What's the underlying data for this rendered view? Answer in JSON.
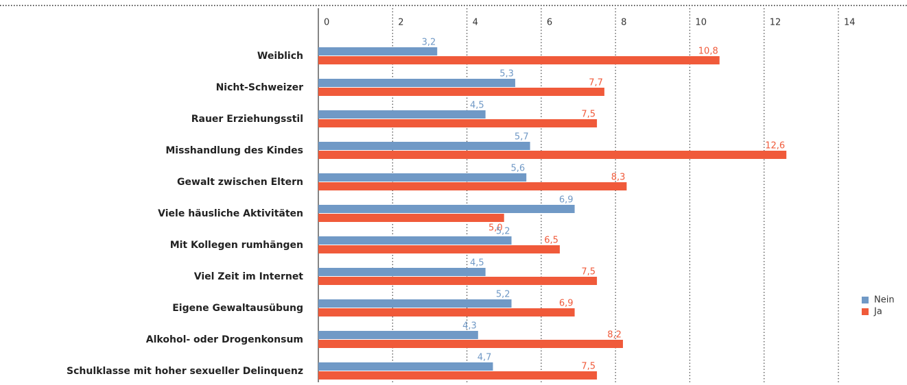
{
  "chart_data": {
    "type": "bar",
    "orientation": "horizontal",
    "categories": [
      "Weiblich",
      "Nicht-Schweizer",
      "Rauer Erziehungsstil",
      "Misshandlung des Kindes",
      "Gewalt zwischen Eltern",
      "Viele häusliche Aktivitäten",
      "Mit Kollegen rumhängen",
      "Viel Zeit im Internet",
      "Eigene Gewaltausübung",
      "Alkohol- oder Drogenkonsum",
      "Schulklasse mit hoher sexueller Delinquenz"
    ],
    "series": [
      {
        "name": "Nein",
        "color": "#7099c6",
        "values": [
          3.2,
          5.3,
          4.5,
          5.7,
          5.6,
          6.9,
          5.2,
          4.5,
          5.2,
          4.3,
          4.7
        ],
        "value_labels": [
          "3,2",
          "5,3",
          "4,5",
          "5,7",
          "5,6",
          "6,9",
          "5,2",
          "4,5",
          "5,2",
          "4,3",
          "4,7"
        ]
      },
      {
        "name": "Ja",
        "color": "#f05a3a",
        "values": [
          10.8,
          7.7,
          7.5,
          12.6,
          8.3,
          5.0,
          6.5,
          7.5,
          6.9,
          8.2,
          7.5
        ],
        "value_labels": [
          "10,8",
          "7,7",
          "7,5",
          "12,6",
          "8,3",
          "5,0",
          "6,5",
          "7,5",
          "6,9",
          "8,2",
          "7,5"
        ]
      }
    ],
    "xlim": [
      0,
      14
    ],
    "xticks": [
      0,
      2,
      4,
      6,
      8,
      10,
      12,
      14
    ],
    "grid": true,
    "legend": "right"
  }
}
